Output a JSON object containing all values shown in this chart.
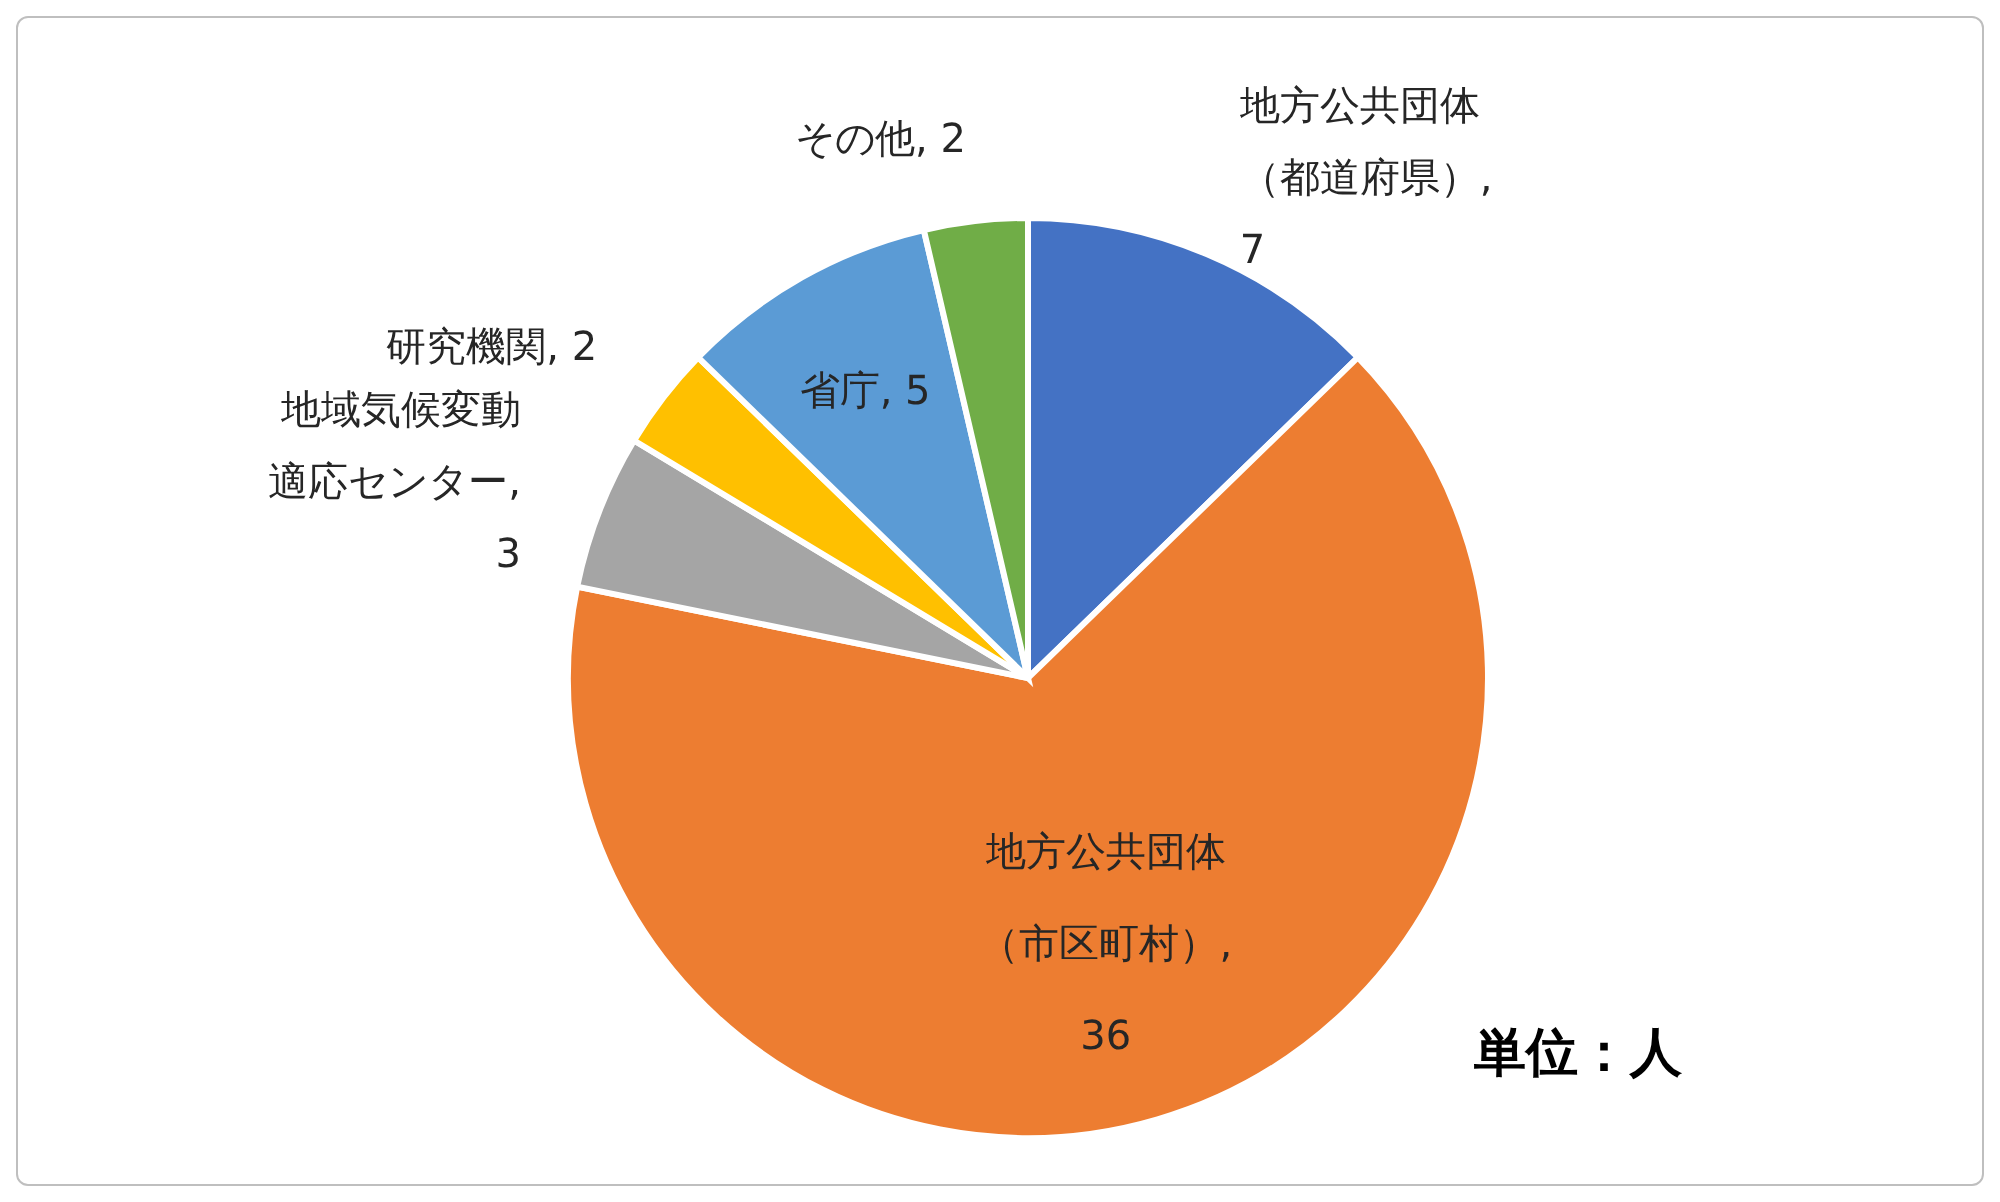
{
  "chart_data": {
    "type": "pie",
    "categories": [
      "地方公共団体（都道府県）",
      "地方公共団体（市区町村）",
      "地域気候変動適応センター",
      "研究機関",
      "省庁",
      "その他"
    ],
    "values": [
      7,
      36,
      3,
      2,
      5,
      2
    ],
    "value_labels": [
      ", 7",
      ", 36",
      ", 3",
      ", 2",
      ", 5",
      ", 2"
    ],
    "colors": [
      "#4472c4",
      "#ed7d31",
      "#a5a5a5",
      "#ffc000",
      "#5b9bd5",
      "#70ad47"
    ],
    "annotations": [
      "単位：人"
    ]
  }
}
